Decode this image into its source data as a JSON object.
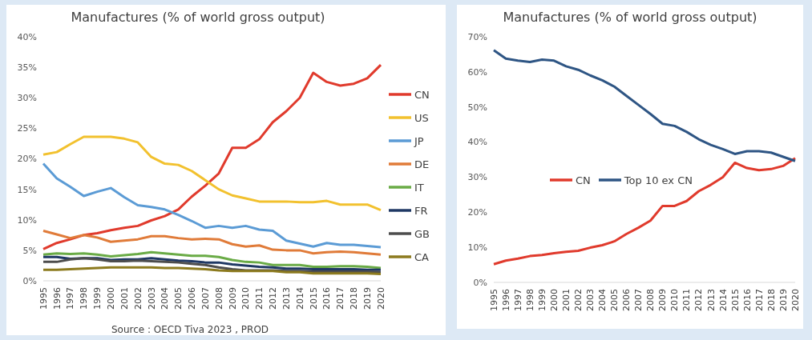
{
  "chart_data": [
    {
      "type": "line",
      "title": "Manufactures (% of world gross output)",
      "categories": [
        "1995",
        "1996",
        "1997",
        "1998",
        "1999",
        "2000",
        "2001",
        "2002",
        "2003",
        "2004",
        "2005",
        "2006",
        "2007",
        "2008",
        "2009",
        "2010",
        "2011",
        "2012",
        "2013",
        "2014",
        "2015",
        "2016",
        "2017",
        "2018",
        "2019",
        "2020"
      ],
      "series": [
        {
          "name": "CN",
          "color": "#e03a2c",
          "values": [
            5.2,
            6.2,
            6.8,
            7.5,
            7.8,
            8.3,
            8.7,
            9.0,
            9.9,
            10.6,
            11.7,
            13.8,
            15.6,
            17.6,
            21.8,
            21.8,
            23.2,
            26.0,
            27.8,
            30.0,
            34.1,
            32.6,
            32.0,
            32.3,
            33.2,
            35.4
          ]
        },
        {
          "name": "US",
          "color": "#f2c12e",
          "values": [
            20.7,
            21.1,
            22.4,
            23.6,
            23.6,
            23.6,
            23.3,
            22.7,
            20.3,
            19.2,
            19.0,
            18.0,
            16.5,
            15.0,
            14.0,
            13.5,
            13.0,
            13.0,
            13.0,
            12.9,
            12.9,
            13.1,
            12.5,
            12.5,
            12.5,
            11.6
          ]
        },
        {
          "name": "JP",
          "color": "#5b9bd5",
          "values": [
            19.2,
            16.8,
            15.4,
            13.9,
            14.6,
            15.2,
            13.7,
            12.4,
            12.1,
            11.7,
            10.8,
            9.8,
            8.7,
            9.0,
            8.7,
            9.0,
            8.4,
            8.2,
            6.6,
            6.1,
            5.6,
            6.2,
            5.9,
            5.9,
            5.7,
            5.5
          ]
        },
        {
          "name": "DE",
          "color": "#e07b39",
          "values": [
            8.2,
            7.6,
            7.0,
            7.5,
            7.1,
            6.4,
            6.6,
            6.8,
            7.3,
            7.3,
            7.0,
            6.8,
            6.9,
            6.8,
            6.0,
            5.6,
            5.8,
            5.1,
            5.0,
            5.0,
            4.5,
            4.7,
            4.8,
            4.7,
            4.5,
            4.3
          ]
        },
        {
          "name": "IT",
          "color": "#6aab46",
          "values": [
            4.3,
            4.5,
            4.4,
            4.5,
            4.3,
            4.0,
            4.2,
            4.4,
            4.7,
            4.5,
            4.3,
            4.1,
            4.1,
            3.9,
            3.4,
            3.1,
            3.0,
            2.6,
            2.6,
            2.6,
            2.3,
            2.3,
            2.4,
            2.4,
            2.3,
            2.1
          ]
        },
        {
          "name": "FR",
          "color": "#1f3864",
          "values": [
            3.9,
            3.9,
            3.6,
            3.7,
            3.7,
            3.4,
            3.5,
            3.5,
            3.7,
            3.5,
            3.3,
            3.2,
            3.0,
            3.0,
            2.7,
            2.5,
            2.3,
            2.2,
            2.0,
            2.0,
            1.9,
            1.9,
            1.9,
            1.9,
            1.8,
            1.8
          ]
        },
        {
          "name": "GB",
          "color": "#4d4d4d",
          "values": [
            3.1,
            3.1,
            3.5,
            3.7,
            3.5,
            3.2,
            3.2,
            3.3,
            3.2,
            3.1,
            3.0,
            2.8,
            2.6,
            2.2,
            1.9,
            1.7,
            1.7,
            1.7,
            1.6,
            1.6,
            1.5,
            1.5,
            1.5,
            1.5,
            1.5,
            1.4
          ]
        },
        {
          "name": "CA",
          "color": "#8c7a1e",
          "values": [
            1.8,
            1.8,
            1.9,
            2.0,
            2.1,
            2.2,
            2.2,
            2.2,
            2.2,
            2.1,
            2.1,
            2.0,
            1.9,
            1.7,
            1.6,
            1.6,
            1.6,
            1.6,
            1.4,
            1.4,
            1.2,
            1.2,
            1.2,
            1.2,
            1.2,
            1.1
          ]
        }
      ],
      "ylim": [
        0,
        40
      ],
      "yticks": [
        {
          "value": 0,
          "label": "0%"
        },
        {
          "value": 5,
          "label": "5%"
        },
        {
          "value": 10,
          "label": "10%"
        },
        {
          "value": 15,
          "label": "15%"
        },
        {
          "value": 20,
          "label": "20%"
        },
        {
          "value": 25,
          "label": "25%"
        },
        {
          "value": 30,
          "label": "30%"
        },
        {
          "value": 35,
          "label": "35%"
        },
        {
          "value": 40,
          "label": "40%"
        }
      ],
      "grid": false,
      "legend": "right",
      "marker": "none",
      "line_style": "solid",
      "annotations": [
        "Source : OECD Tiva 2023 , PROD"
      ]
    },
    {
      "type": "line",
      "title": "Manufactures (% of world gross output)",
      "categories": [
        "1995",
        "1996",
        "1997",
        "1998",
        "1999",
        "2000",
        "2001",
        "2002",
        "2003",
        "2004",
        "2005",
        "2006",
        "2007",
        "2008",
        "2009",
        "2010",
        "2011",
        "2012",
        "2013",
        "2014",
        "2015",
        "2016",
        "2017",
        "2018",
        "2019",
        "2020"
      ],
      "series": [
        {
          "name": "CN",
          "color": "#e03a2c",
          "values": [
            5.2,
            6.2,
            6.8,
            7.5,
            7.8,
            8.3,
            8.7,
            9.0,
            9.9,
            10.6,
            11.7,
            13.8,
            15.6,
            17.6,
            21.8,
            21.8,
            23.2,
            26.0,
            27.8,
            30.0,
            34.1,
            32.6,
            32.0,
            32.3,
            33.2,
            35.4
          ]
        },
        {
          "name": "Top  10 ex CN",
          "color": "#2e5584",
          "values": [
            66.2,
            63.8,
            63.2,
            62.8,
            63.5,
            63.2,
            61.6,
            60.6,
            59.0,
            57.6,
            55.8,
            53.2,
            50.6,
            48.0,
            45.2,
            44.6,
            42.9,
            40.8,
            39.2,
            38.0,
            36.6,
            37.4,
            37.4,
            37.0,
            35.8,
            34.6
          ]
        }
      ],
      "ylim": [
        0,
        70
      ],
      "yticks": [
        {
          "value": 0,
          "label": "0%"
        },
        {
          "value": 10,
          "label": "10%"
        },
        {
          "value": 20,
          "label": "20%"
        },
        {
          "value": 30,
          "label": "30%"
        },
        {
          "value": 40,
          "label": "40%"
        },
        {
          "value": 50,
          "label": "50%"
        },
        {
          "value": 60,
          "label": "60%"
        },
        {
          "value": 70,
          "label": "70%"
        }
      ],
      "grid": false,
      "legend": "center",
      "marker": "none",
      "line_style": "solid"
    }
  ]
}
